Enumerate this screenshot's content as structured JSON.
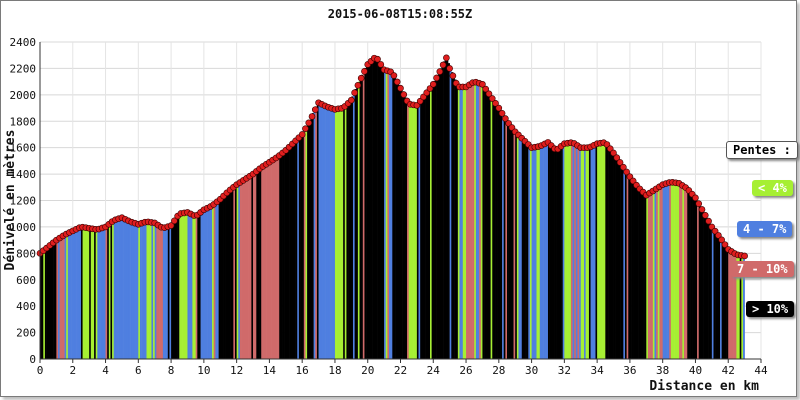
{
  "chart_data": {
    "type": "area",
    "title": "2015-06-08T15:08:55Z",
    "xlabel": "Distance en km",
    "ylabel": "Dénivelé en mètres",
    "xlim": [
      0,
      44
    ],
    "ylim": [
      0,
      2400
    ],
    "x_ticks": [
      "0",
      "2",
      "4",
      "6",
      "8",
      "10",
      "12",
      "14",
      "16",
      "18",
      "20",
      "22",
      "24",
      "26",
      "28",
      "30",
      "32",
      "34",
      "36",
      "38",
      "40",
      "42",
      "44"
    ],
    "y_ticks": [
      "0",
      "200",
      "400",
      "600",
      "800",
      "1000",
      "1200",
      "1400",
      "1600",
      "1800",
      "2000",
      "2200",
      "2400"
    ],
    "grid": true,
    "legend_title": "Pentes :",
    "legend": [
      {
        "label": "< 4%",
        "color": "#a6ef33"
      },
      {
        "label": "4 - 7%",
        "color": "#4f7fe0"
      },
      {
        "label": "7 - 10%",
        "color": "#d06a6a"
      },
      {
        "label": "> 10%",
        "color": "#000000"
      }
    ],
    "marker_color": "#e01e1e",
    "profile": [
      [
        0,
        800
      ],
      [
        0.5,
        850
      ],
      [
        1,
        900
      ],
      [
        1.5,
        940
      ],
      [
        2,
        970
      ],
      [
        2.5,
        1000
      ],
      [
        3,
        990
      ],
      [
        3.5,
        980
      ],
      [
        4,
        1000
      ],
      [
        4.5,
        1050
      ],
      [
        5,
        1070
      ],
      [
        5.5,
        1040
      ],
      [
        6,
        1020
      ],
      [
        6.5,
        1040
      ],
      [
        7,
        1030
      ],
      [
        7.5,
        990
      ],
      [
        8,
        1010
      ],
      [
        8.5,
        1100
      ],
      [
        9,
        1110
      ],
      [
        9.5,
        1080
      ],
      [
        10,
        1130
      ],
      [
        10.5,
        1160
      ],
      [
        11,
        1210
      ],
      [
        11.5,
        1270
      ],
      [
        12,
        1320
      ],
      [
        12.5,
        1360
      ],
      [
        13,
        1400
      ],
      [
        13.5,
        1450
      ],
      [
        14,
        1490
      ],
      [
        14.5,
        1530
      ],
      [
        15,
        1580
      ],
      [
        15.5,
        1640
      ],
      [
        16,
        1700
      ],
      [
        16.5,
        1810
      ],
      [
        17,
        1940
      ],
      [
        17.5,
        1910
      ],
      [
        18,
        1890
      ],
      [
        18.5,
        1900
      ],
      [
        19,
        1960
      ],
      [
        19.5,
        2100
      ],
      [
        20,
        2230
      ],
      [
        20.5,
        2290
      ],
      [
        21,
        2190
      ],
      [
        21.5,
        2170
      ],
      [
        22,
        2050
      ],
      [
        22.5,
        1930
      ],
      [
        23,
        1920
      ],
      [
        23.5,
        2000
      ],
      [
        24,
        2080
      ],
      [
        24.5,
        2200
      ],
      [
        24.8,
        2280
      ],
      [
        25,
        2200
      ],
      [
        25.5,
        2060
      ],
      [
        26,
        2060
      ],
      [
        26.5,
        2100
      ],
      [
        27,
        2080
      ],
      [
        27.5,
        1990
      ],
      [
        28,
        1900
      ],
      [
        28.5,
        1800
      ],
      [
        29,
        1720
      ],
      [
        29.5,
        1660
      ],
      [
        30,
        1600
      ],
      [
        30.5,
        1610
      ],
      [
        31,
        1640
      ],
      [
        31.5,
        1580
      ],
      [
        32,
        1630
      ],
      [
        32.5,
        1640
      ],
      [
        33,
        1600
      ],
      [
        33.5,
        1600
      ],
      [
        34,
        1630
      ],
      [
        34.5,
        1640
      ],
      [
        35,
        1560
      ],
      [
        35.5,
        1470
      ],
      [
        36,
        1380
      ],
      [
        36.5,
        1300
      ],
      [
        37,
        1240
      ],
      [
        37.5,
        1280
      ],
      [
        38,
        1320
      ],
      [
        38.5,
        1340
      ],
      [
        39,
        1330
      ],
      [
        39.5,
        1290
      ],
      [
        40,
        1220
      ],
      [
        40.5,
        1110
      ],
      [
        41,
        1000
      ],
      [
        41.5,
        920
      ],
      [
        42,
        830
      ],
      [
        42.5,
        790
      ],
      [
        43,
        780
      ]
    ]
  }
}
